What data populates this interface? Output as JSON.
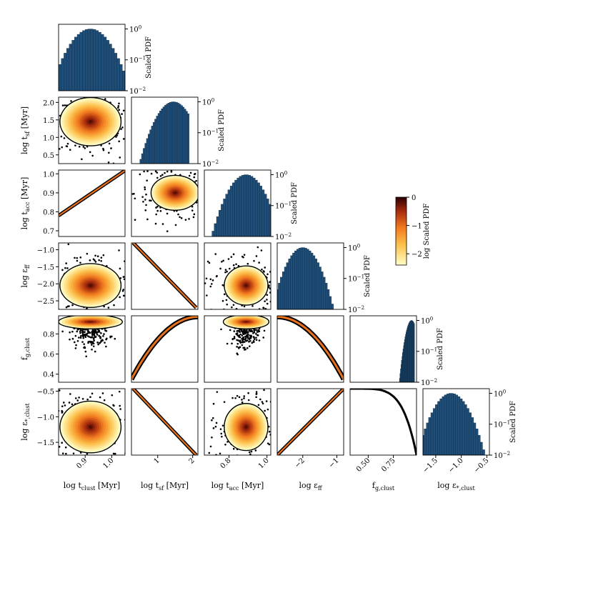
{
  "figure": {
    "type": "corner_plot",
    "histogram_label": "Scaled PDF",
    "colorbar": {
      "label": "log Scaled PDF",
      "ticks": [
        "0",
        "−1",
        "−2"
      ],
      "range": [
        -2.4,
        0
      ]
    },
    "variables": [
      {
        "id": "tclust",
        "axis_label": "log t_clust [Myr]",
        "x_ticks": [
          "0.9",
          "1.0"
        ],
        "x_tick_values": [
          0.9,
          1.0
        ],
        "range": [
          0.8,
          1.05
        ]
      },
      {
        "id": "tsf",
        "axis_label": "log t_sf [Myr]",
        "x_ticks": [
          "1",
          "2"
        ],
        "x_tick_values": [
          1,
          2
        ],
        "y_ticks": [
          "2.0",
          "1.5",
          "1.0",
          "0.5"
        ],
        "y_tick_values": [
          2.0,
          1.5,
          1.0,
          0.5
        ],
        "range": [
          0.25,
          2.15
        ]
      },
      {
        "id": "tacc",
        "axis_label": "log t_acc [Myr]",
        "x_ticks": [
          "0.8",
          "1.0"
        ],
        "x_tick_values": [
          0.8,
          1.0
        ],
        "y_ticks": [
          "1.0",
          "0.9",
          "0.8",
          "0.7"
        ],
        "y_tick_values": [
          1.0,
          0.9,
          0.8,
          0.7
        ],
        "range": [
          0.67,
          1.02
        ]
      },
      {
        "id": "eff",
        "axis_label": "log ε_ff",
        "x_ticks": [
          "−2",
          "−1"
        ],
        "x_tick_values": [
          -2,
          -1
        ],
        "y_ticks": [
          "−1.0",
          "−1.5",
          "−2.0",
          "−2.5"
        ],
        "y_tick_values": [
          -1.0,
          -1.5,
          -2.0,
          -2.5
        ],
        "range": [
          -2.75,
          -0.8
        ]
      },
      {
        "id": "fg",
        "axis_label": "f_g,clust",
        "x_ticks": [
          "0.50",
          "0.75"
        ],
        "x_tick_values": [
          0.5,
          0.75
        ],
        "y_ticks": [
          "0.8",
          "0.6",
          "0.4"
        ],
        "y_tick_values": [
          0.8,
          0.6,
          0.4
        ],
        "range": [
          0.32,
          0.98
        ]
      },
      {
        "id": "estar",
        "axis_label": "log ε_*,clust",
        "x_ticks": [
          "−1.5",
          "−1.0",
          "−0.5"
        ],
        "x_tick_values": [
          -1.5,
          -1.0,
          -0.5
        ],
        "y_ticks": [
          "−0.5",
          "−1.0",
          "−1.5"
        ],
        "y_tick_values": [
          -0.5,
          -1.0,
          -1.5
        ],
        "range": [
          -1.75,
          -0.45
        ]
      }
    ],
    "pdf_ticks": [
      "10^0",
      "10^−1",
      "10^−2"
    ]
  },
  "chart_data": {
    "type": "heatmap",
    "title": "",
    "description_note": "",
    "histograms": {
      "tclust": {
        "mean": 0.92,
        "sd": 0.05
      },
      "tsf": {
        "mean": 1.45,
        "sd": 0.32,
        "cutoff": 1.9
      },
      "tacc": {
        "mean": 0.89,
        "sd": 0.06
      },
      "eff": {
        "mean": -2.0,
        "sd": 0.3
      },
      "fg": {
        "mean": 0.93,
        "sd": 0.04,
        "cutoff": 0.96
      },
      "estar": {
        "mean": -1.2,
        "sd": 0.22
      }
    },
    "pairs": [
      {
        "x": "tclust",
        "y": "tsf",
        "shape": "blob",
        "cx": 0.92,
        "cy": 1.45,
        "sx": 0.05,
        "sy": 0.3
      },
      {
        "x": "tclust",
        "y": "tacc",
        "shape": "line",
        "slope": 0.95,
        "intercept": 0.02
      },
      {
        "x": "tsf",
        "y": "tacc",
        "shape": "blob",
        "cx": 1.5,
        "cy": 0.9,
        "sx": 0.3,
        "sy": 0.04
      },
      {
        "x": "tclust",
        "y": "eff",
        "shape": "blob",
        "cx": 0.92,
        "cy": -2.05,
        "sx": 0.05,
        "sy": 0.28
      },
      {
        "x": "tsf",
        "y": "eff",
        "shape": "line",
        "x0": 0.3,
        "y0": -0.8,
        "x1": 2.1,
        "y1": -2.7
      },
      {
        "x": "tacc",
        "y": "eff",
        "shape": "blob",
        "cx": 0.89,
        "cy": -2.05,
        "sx": 0.05,
        "sy": 0.25
      },
      {
        "x": "tclust",
        "y": "fg",
        "shape": "top",
        "cx": 0.92,
        "cy": 0.92
      },
      {
        "x": "tsf",
        "y": "fg",
        "shape": "curve_up"
      },
      {
        "x": "tacc",
        "y": "fg",
        "shape": "top",
        "cx": 0.89,
        "cy": 0.92
      },
      {
        "x": "eff",
        "y": "fg",
        "shape": "curve_down"
      },
      {
        "x": "tclust",
        "y": "estar",
        "shape": "blob",
        "cx": 0.92,
        "cy": -1.2,
        "sx": 0.05,
        "sy": 0.22
      },
      {
        "x": "tsf",
        "y": "estar",
        "shape": "line",
        "x0": 0.3,
        "y0": -0.45,
        "x1": 2.1,
        "y1": -1.75
      },
      {
        "x": "tacc",
        "y": "estar",
        "shape": "blob",
        "cx": 0.89,
        "cy": -1.2,
        "sx": 0.05,
        "sy": 0.2
      },
      {
        "x": "eff",
        "y": "estar",
        "shape": "line",
        "x0": -2.75,
        "y0": -1.75,
        "x1": -0.8,
        "y1": -0.45
      },
      {
        "x": "fg",
        "y": "estar",
        "shape": "arc"
      }
    ]
  }
}
